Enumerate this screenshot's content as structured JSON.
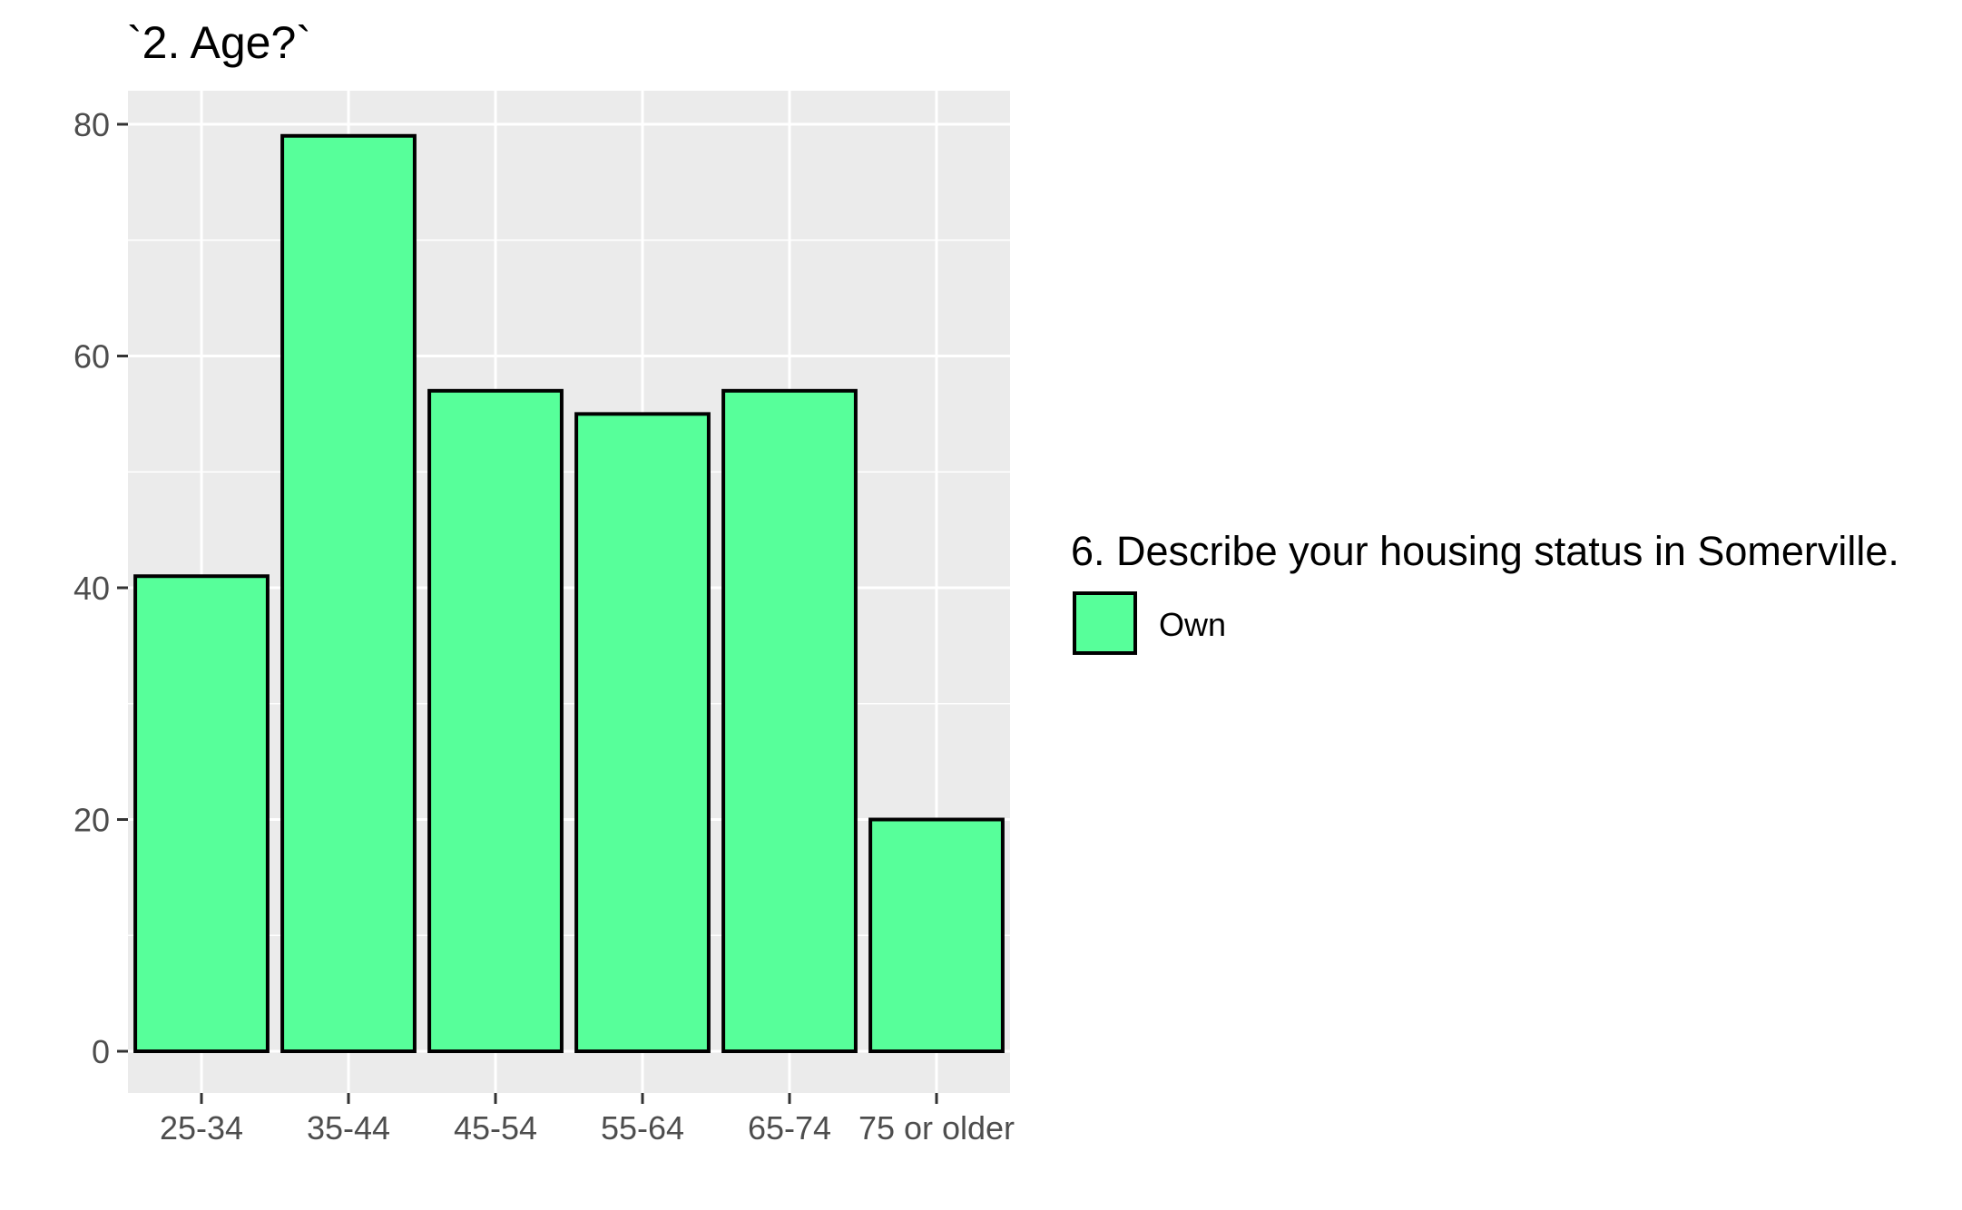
{
  "chart_data": {
    "type": "bar",
    "title": "`2. Age?`",
    "xlabel": "",
    "ylabel": "",
    "categories": [
      "25-34",
      "35-44",
      "45-54",
      "55-64",
      "65-74",
      "75 or older"
    ],
    "series": [
      {
        "name": "Own",
        "values": [
          41,
          79,
          57,
          55,
          57,
          20
        ]
      }
    ],
    "ylim": [
      0,
      82
    ],
    "yticks": [
      0,
      20,
      40,
      60,
      80
    ],
    "grid": true,
    "legend": {
      "title": "6. Describe your housing status in Somerville.",
      "placement": "right",
      "entries": [
        "Own"
      ]
    },
    "colors": {
      "bar_fill": "#57FF9A",
      "bar_stroke": "#000000",
      "panel_background": "#EBEBEB",
      "grid": "#FFFFFF"
    }
  }
}
